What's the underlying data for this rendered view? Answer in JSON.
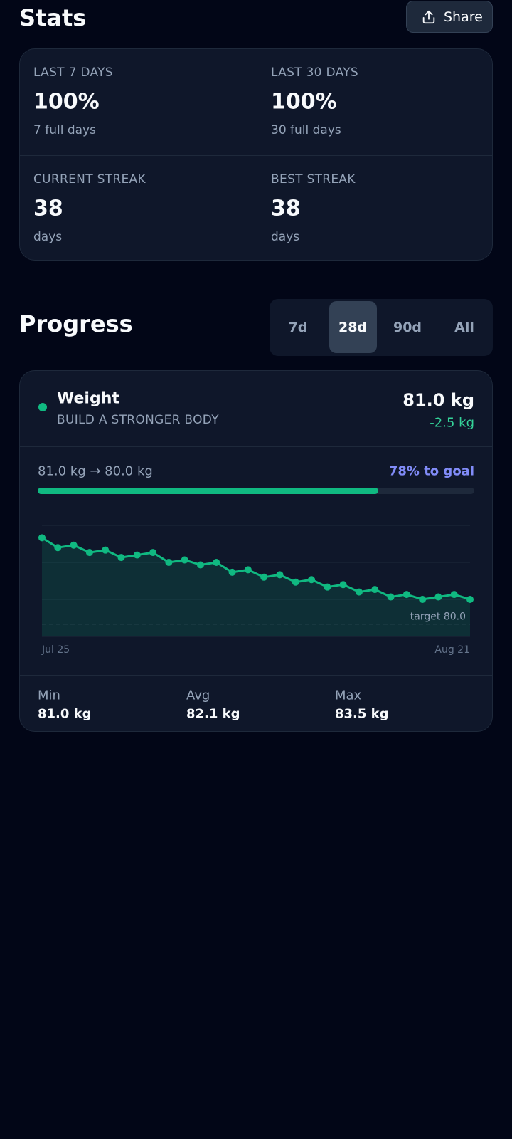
{
  "header": {
    "title": "Stats",
    "share": "Share"
  },
  "stats": [
    {
      "label": "LAST 7 DAYS",
      "value": "100%",
      "sub": "7 full days"
    },
    {
      "label": "LAST 30 DAYS",
      "value": "100%",
      "sub": "30 full days"
    },
    {
      "label": "CURRENT STREAK",
      "value": "38",
      "sub": "days"
    },
    {
      "label": "BEST STREAK",
      "value": "38",
      "sub": "days"
    }
  ],
  "progress": {
    "title": "Progress",
    "ranges": [
      "7d",
      "28d",
      "90d",
      "All"
    ],
    "selected_range": 1
  },
  "metric": {
    "name": "Weight",
    "subtitle": "BUILD A STRONGER BODY",
    "current": "81.0 kg",
    "change": "-2.5 kg",
    "range_text": "81.0 kg → 80.0 kg",
    "goal": {
      "value": 78,
      "label": "78% to goal"
    },
    "summary": [
      {
        "label": "Min",
        "value": "81.0 kg"
      },
      {
        "label": "Avg",
        "value": "82.1 kg"
      },
      {
        "label": "Max",
        "value": "83.5 kg"
      }
    ]
  },
  "chart_data": {
    "type": "line",
    "categories": [
      "Jul 25",
      null,
      null,
      null,
      null,
      null,
      null,
      null,
      null,
      null,
      null,
      null,
      null,
      null,
      null,
      null,
      null,
      null,
      null,
      null,
      null,
      null,
      null,
      null,
      null,
      null,
      null,
      "Aug 21"
    ],
    "values": [
      83.5,
      83.1,
      83.2,
      82.9,
      83.0,
      82.7,
      82.8,
      82.9,
      82.5,
      82.6,
      82.4,
      82.5,
      82.1,
      82.2,
      81.9,
      82.0,
      81.7,
      81.8,
      81.5,
      81.6,
      81.3,
      81.4,
      81.1,
      81.2,
      81.0,
      81.1,
      81.2,
      81.0
    ],
    "color": "#10b981",
    "target": 80.0,
    "target_label": "target 80.0",
    "ylim": [
      79.5,
      84.0
    ],
    "yticks": [
      79.5,
      81.0,
      82.5,
      84.0
    ],
    "grid": true
  }
}
